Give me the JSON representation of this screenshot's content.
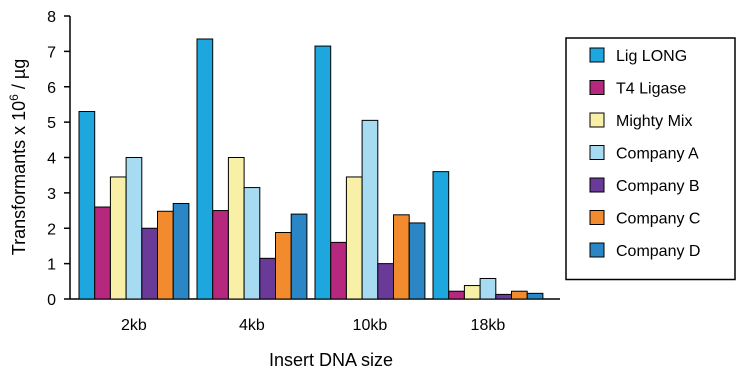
{
  "chart_data": {
    "type": "bar",
    "title": "",
    "xlabel": "Insert DNA size",
    "ylabel_main": "Transformants x 10",
    "ylabel_exp": "6",
    "ylabel_unit": " / µg",
    "ylim": [
      0,
      8
    ],
    "yticks": [
      0,
      1,
      2,
      3,
      4,
      5,
      6,
      7,
      8
    ],
    "categories": [
      "2kb",
      "4kb",
      "10kb",
      "18kb"
    ],
    "legend_position": "right",
    "series": [
      {
        "name": "Lig LONG",
        "color": "#1ea7df",
        "values": [
          5.3,
          7.35,
          7.15,
          3.6
        ]
      },
      {
        "name": "T4 Ligase",
        "color": "#b5287e",
        "values": [
          2.6,
          2.5,
          1.6,
          0.22
        ]
      },
      {
        "name": "Mighty Mix",
        "color": "#f7f0a6",
        "values": [
          3.45,
          4.0,
          3.45,
          0.38
        ]
      },
      {
        "name": "Company A",
        "color": "#a6dbf2",
        "values": [
          4.0,
          3.15,
          5.05,
          0.58
        ]
      },
      {
        "name": "Company B",
        "color": "#6a3a99",
        "values": [
          2.0,
          1.15,
          1.0,
          0.13
        ]
      },
      {
        "name": "Company C",
        "color": "#f18b2d",
        "values": [
          2.48,
          1.88,
          2.38,
          0.22
        ]
      },
      {
        "name": "Company D",
        "color": "#2b86c5",
        "values": [
          2.7,
          2.4,
          2.15,
          0.16
        ]
      }
    ]
  }
}
